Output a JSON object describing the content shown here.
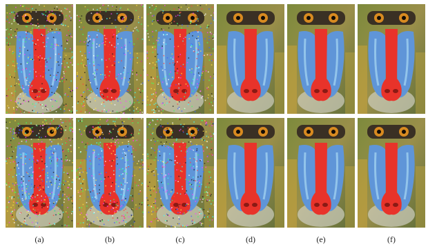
{
  "figure": {
    "rows": 2,
    "labels": [
      "(a)",
      "(b)",
      "(c)",
      "(d)",
      "(e)",
      "(f)"
    ],
    "noise_levels": [
      [
        0.85,
        0.65,
        0.7,
        0.0,
        0.0,
        0.0
      ],
      [
        1.0,
        0.8,
        0.85,
        0.0,
        0.0,
        0.0
      ]
    ],
    "subject": "mandrill face"
  }
}
